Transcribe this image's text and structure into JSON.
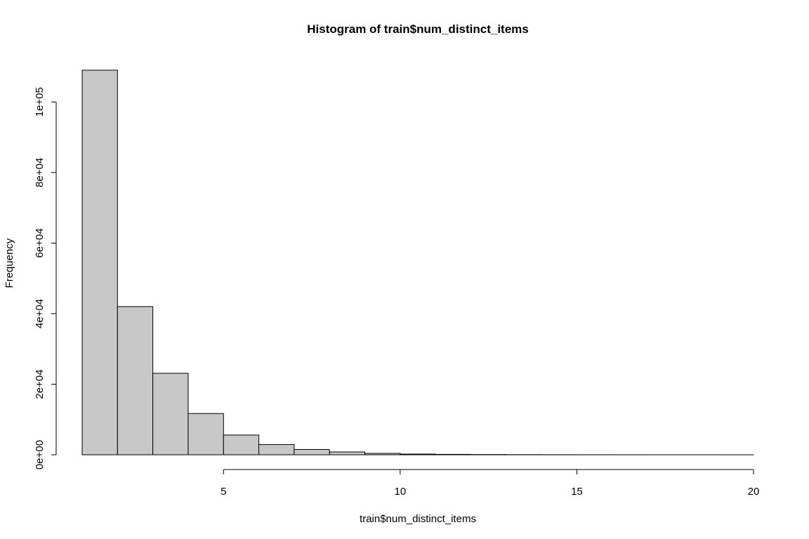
{
  "chart_data": {
    "type": "bar",
    "title": "Histogram of train$num_distinct_items",
    "xlabel": "train$num_distinct_items",
    "ylabel": "Frequency",
    "xlim": [
      1,
      20
    ],
    "ylim": [
      0,
      109000
    ],
    "x_ticks": [
      5,
      10,
      15,
      20
    ],
    "x_tick_labels": [
      "5",
      "10",
      "15",
      "20"
    ],
    "y_ticks": [
      0,
      20000,
      40000,
      60000,
      80000,
      100000
    ],
    "y_tick_labels": [
      "0e+00",
      "2e+04",
      "4e+04",
      "6e+04",
      "8e+04",
      "1e+05"
    ],
    "bins": [
      {
        "from": 1,
        "to": 2,
        "count": 109000
      },
      {
        "from": 2,
        "to": 3,
        "count": 42000
      },
      {
        "from": 3,
        "to": 4,
        "count": 23100
      },
      {
        "from": 4,
        "to": 5,
        "count": 11700
      },
      {
        "from": 5,
        "to": 6,
        "count": 5600
      },
      {
        "from": 6,
        "to": 7,
        "count": 2900
      },
      {
        "from": 7,
        "to": 8,
        "count": 1500
      },
      {
        "from": 8,
        "to": 9,
        "count": 800
      },
      {
        "from": 9,
        "to": 10,
        "count": 400
      },
      {
        "from": 10,
        "to": 11,
        "count": 200
      },
      {
        "from": 11,
        "to": 12,
        "count": 120
      },
      {
        "from": 12,
        "to": 13,
        "count": 70
      },
      {
        "from": 13,
        "to": 14,
        "count": 40
      },
      {
        "from": 14,
        "to": 15,
        "count": 25
      },
      {
        "from": 15,
        "to": 16,
        "count": 15
      },
      {
        "from": 16,
        "to": 17,
        "count": 10
      },
      {
        "from": 17,
        "to": 18,
        "count": 6
      },
      {
        "from": 18,
        "to": 19,
        "count": 4
      },
      {
        "from": 19,
        "to": 20,
        "count": 3
      }
    ],
    "bar_fill": "#c8c8c8",
    "grid": false
  }
}
